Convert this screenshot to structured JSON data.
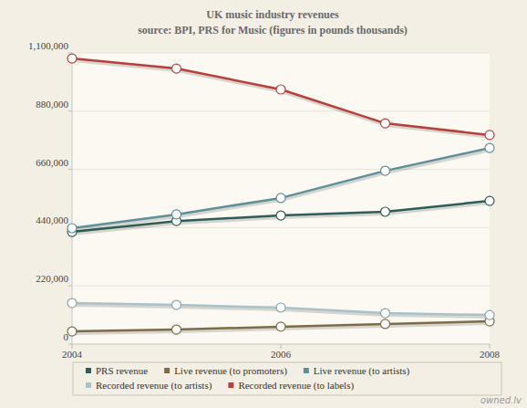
{
  "chart_data": {
    "type": "line",
    "title": "UK music industry revenues",
    "subtitle": "source: BPI, PRS for Music (figures in pounds thousands)",
    "annotations": [
      "owned.lv"
    ],
    "x": [
      2004,
      2005,
      2006,
      2007,
      2008
    ],
    "xlim": [
      2004,
      2008
    ],
    "xticks": [
      2004,
      2006,
      2008
    ],
    "ylim": [
      0,
      1100000
    ],
    "yticks": [
      {
        "value": 0,
        "label": "0"
      },
      {
        "value": 220000,
        "label": "220,000"
      },
      {
        "value": 440000,
        "label": "440,000"
      },
      {
        "value": 660000,
        "label": "660,000"
      },
      {
        "value": 880000,
        "label": "880,000"
      },
      {
        "value": 1100000,
        "label": "1,100,000"
      }
    ],
    "grid": true,
    "legend": "bottom",
    "marker": "circle",
    "series": [
      {
        "name": "PRS revenue",
        "color": "#2f5d58",
        "values": [
          424000,
          465000,
          486000,
          500000,
          541000
        ]
      },
      {
        "name": "Live revenue (to promoters)",
        "color": "#7d6c48",
        "values": [
          48000,
          55000,
          66000,
          76000,
          86000
        ]
      },
      {
        "name": "Live revenue (to artists)",
        "color": "#5e8f9c",
        "values": [
          438000,
          490000,
          552000,
          655000,
          741000
        ]
      },
      {
        "name": "Recorded revenue (to artists)",
        "color": "#a9c1cb",
        "values": [
          155000,
          148000,
          138000,
          117000,
          110000
        ]
      },
      {
        "name": "Recorded revenue (to labels)",
        "color": "#b8403a",
        "values": [
          1079000,
          1041000,
          962000,
          834000,
          790000
        ]
      }
    ]
  }
}
